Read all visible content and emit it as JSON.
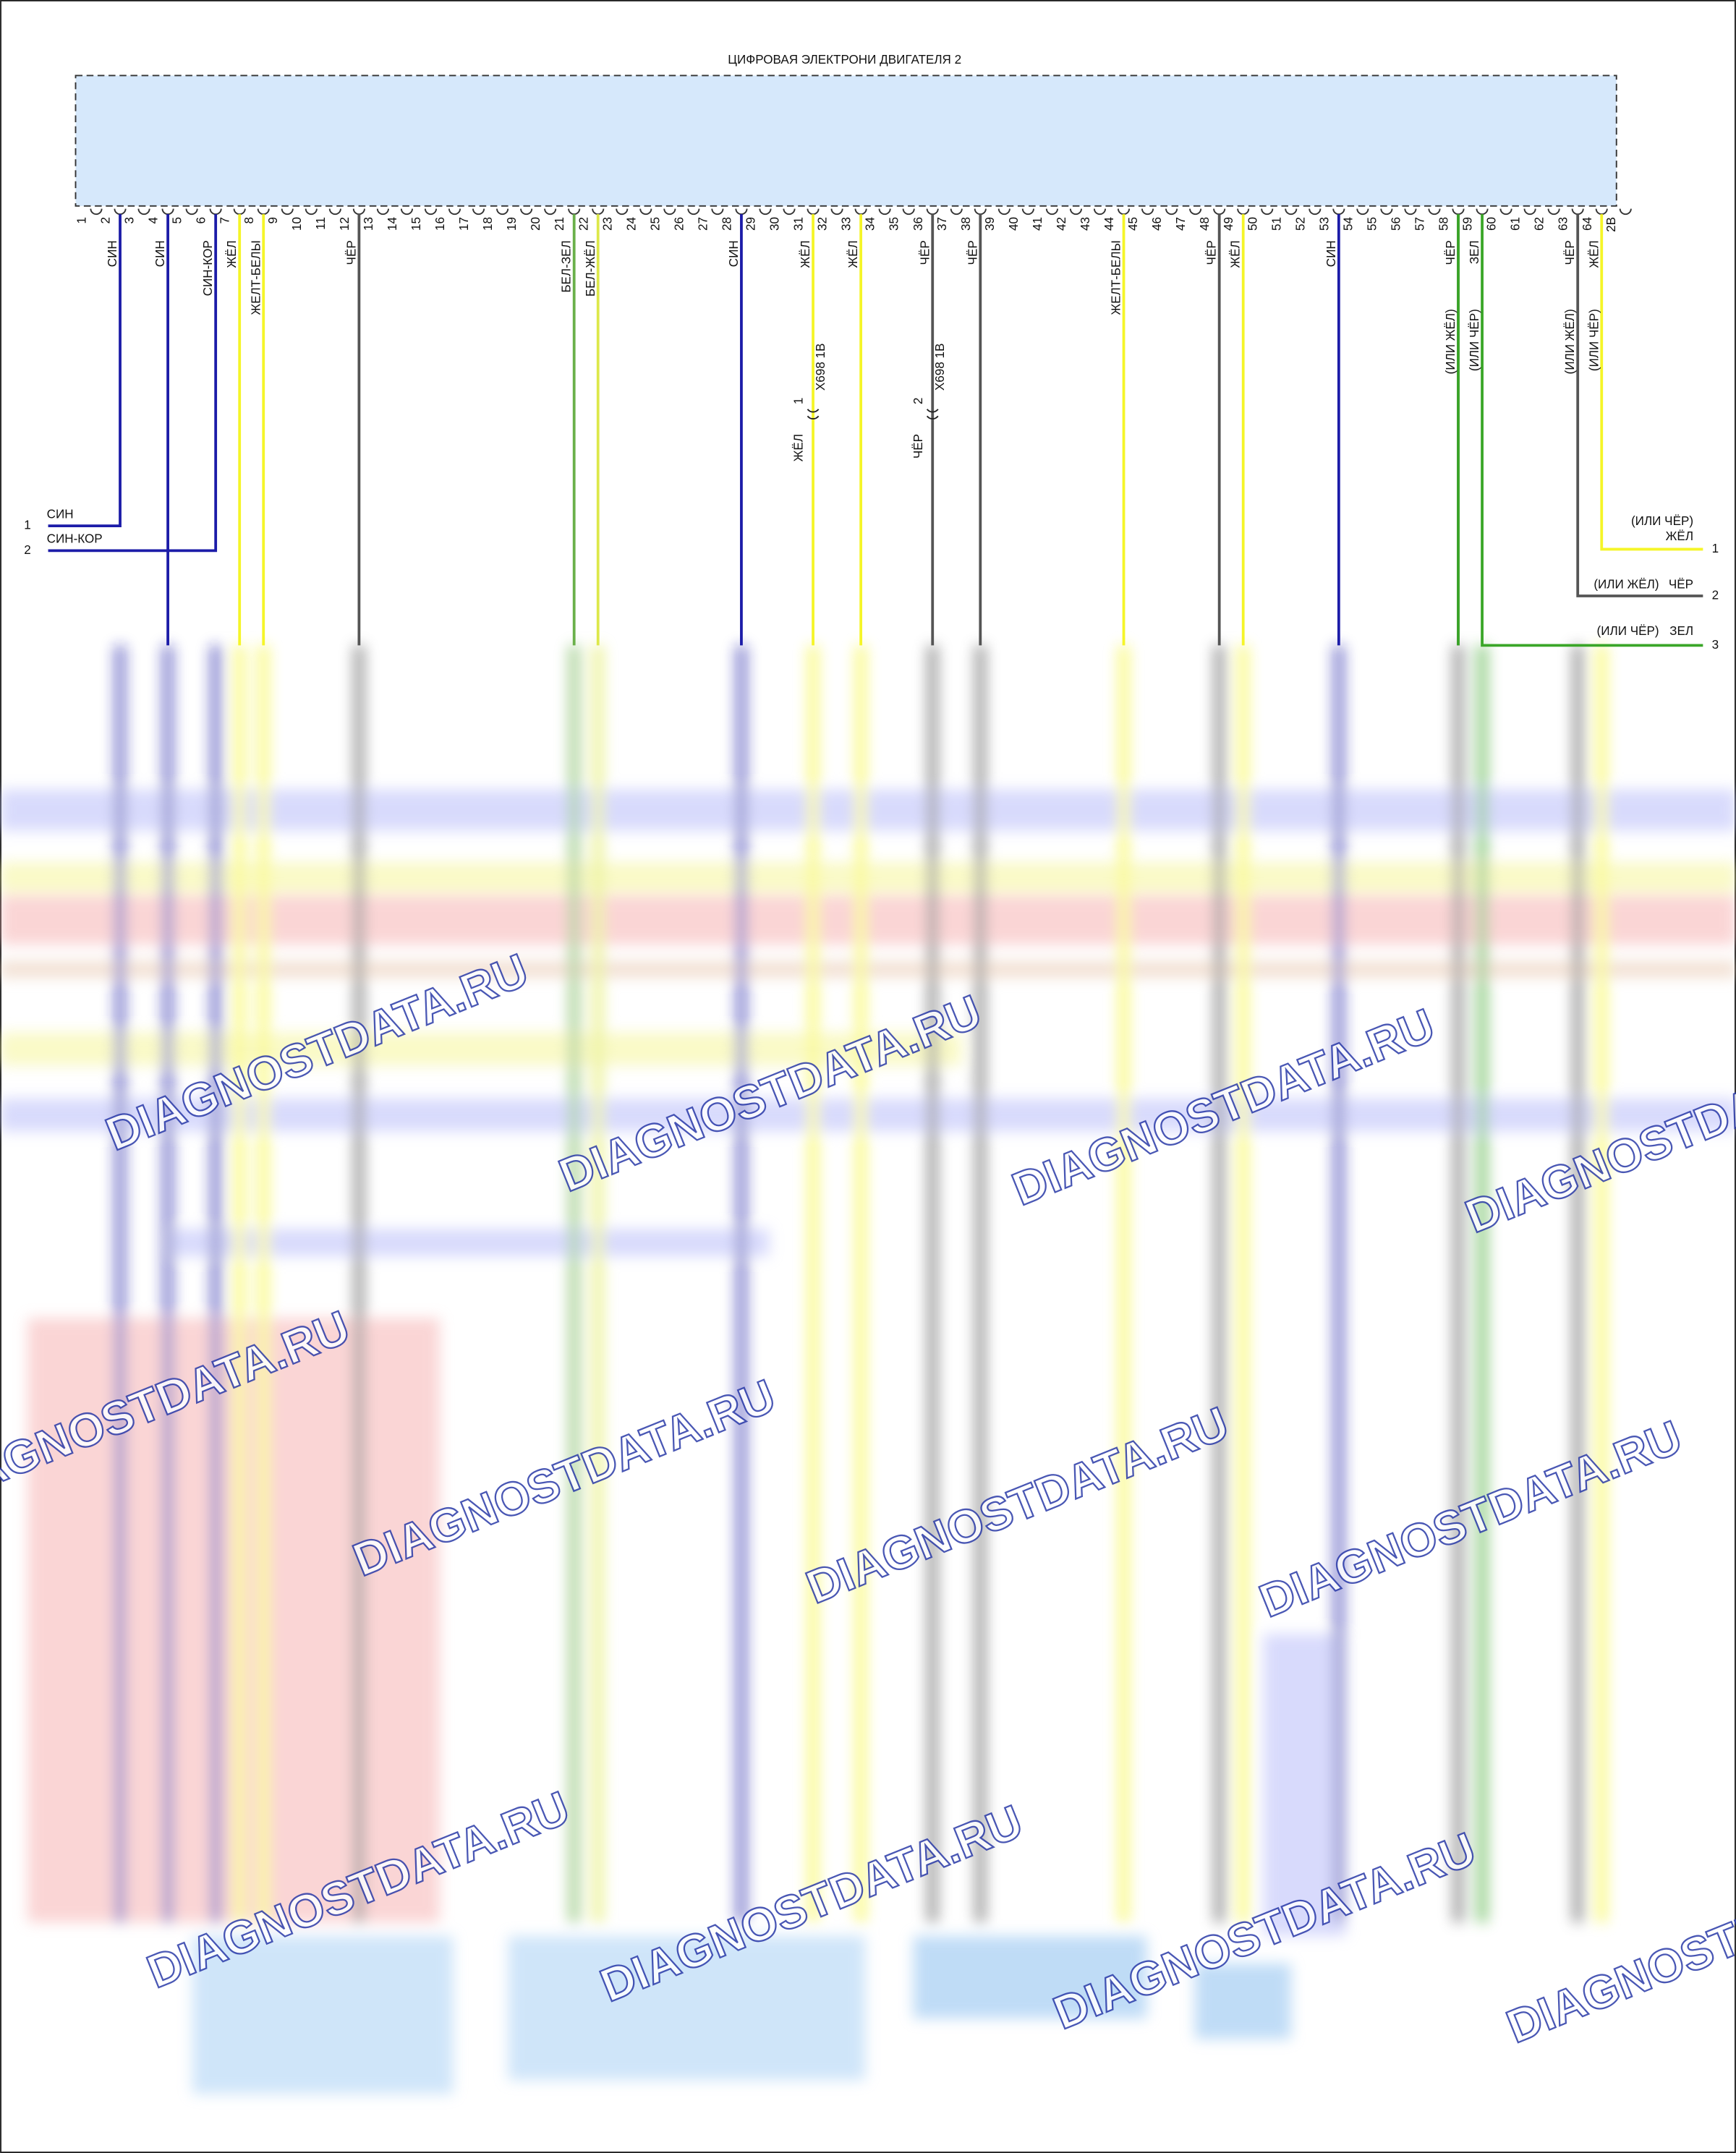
{
  "module": {
    "title": "ЦИФРОВАЯ ЭЛЕКТРОНИ ДВИГАТЕЛЯ 2"
  },
  "pins": [
    {
      "number": "1"
    },
    {
      "number": "2",
      "wire": {
        "label": "СИН",
        "color": "#1c1ca8"
      }
    },
    {
      "number": "3"
    },
    {
      "number": "4",
      "wire": {
        "label": "СИН",
        "color": "#1c1ca8"
      }
    },
    {
      "number": "5"
    },
    {
      "number": "6",
      "wire": {
        "label": "СИН-КОР",
        "color": "#1c1ca8"
      }
    },
    {
      "number": "7",
      "wire": {
        "label": "ЖЁЛ",
        "color": "#f5f528"
      }
    },
    {
      "number": "8",
      "wire": {
        "label": "ЖЕЛТ-БЕЛЫ",
        "color": "#f5f528"
      }
    },
    {
      "number": "9"
    },
    {
      "number": "10"
    },
    {
      "number": "11"
    },
    {
      "number": "12",
      "wire": {
        "label": "ЧЁР",
        "color": "#555555"
      }
    },
    {
      "number": "13"
    },
    {
      "number": "14"
    },
    {
      "number": "15"
    },
    {
      "number": "16"
    },
    {
      "number": "17"
    },
    {
      "number": "18"
    },
    {
      "number": "19"
    },
    {
      "number": "20"
    },
    {
      "number": "21",
      "wire": {
        "label": "БЕЛ-ЗЕЛ",
        "color": "#6ab04a"
      }
    },
    {
      "number": "22",
      "wire": {
        "label": "БЕЛ-ЖЁЛ",
        "color": "#dde84a"
      }
    },
    {
      "number": "23"
    },
    {
      "number": "24"
    },
    {
      "number": "25"
    },
    {
      "number": "26"
    },
    {
      "number": "27"
    },
    {
      "number": "28",
      "wire": {
        "label": "СИН",
        "color": "#1c1ca8"
      }
    },
    {
      "number": "29"
    },
    {
      "number": "30"
    },
    {
      "number": "31",
      "wire": {
        "label": "ЖЁЛ",
        "color": "#f5f528",
        "connector": {
          "pin": "1",
          "name": "X698 1В",
          "lower_label": "ЖЁЛ"
        }
      }
    },
    {
      "number": "32"
    },
    {
      "number": "33",
      "wire": {
        "label": "ЖЁЛ",
        "color": "#f5f528"
      }
    },
    {
      "number": "34"
    },
    {
      "number": "35"
    },
    {
      "number": "36",
      "wire": {
        "label": "ЧЁР",
        "color": "#555555",
        "connector": {
          "pin": "2",
          "name": "X698 1В",
          "lower_label": "ЧЁР"
        }
      }
    },
    {
      "number": "37"
    },
    {
      "number": "38",
      "wire": {
        "label": "ЧЁР",
        "color": "#555555"
      }
    },
    {
      "number": "39"
    },
    {
      "number": "40"
    },
    {
      "number": "41"
    },
    {
      "number": "42"
    },
    {
      "number": "43"
    },
    {
      "number": "44",
      "wire": {
        "label": "ЖЕЛТ-БЕЛЫ",
        "color": "#f5f528"
      }
    },
    {
      "number": "45"
    },
    {
      "number": "46"
    },
    {
      "number": "47"
    },
    {
      "number": "48",
      "wire": {
        "label": "ЧЁР",
        "color": "#555555"
      }
    },
    {
      "number": "49",
      "wire": {
        "label": "ЖЁЛ",
        "color": "#f5f528"
      }
    },
    {
      "number": "50"
    },
    {
      "number": "51"
    },
    {
      "number": "52"
    },
    {
      "number": "53",
      "wire": {
        "label": "СИН",
        "color": "#1c1ca8"
      }
    },
    {
      "number": "54"
    },
    {
      "number": "55"
    },
    {
      "number": "56"
    },
    {
      "number": "57"
    },
    {
      "number": "58",
      "wire": {
        "label": "ЧЁР",
        "alt_label": "(ИЛИ ЖЁЛ)",
        "color": "#555555"
      }
    },
    {
      "number": "59",
      "wire": {
        "label": "ЗЕЛ",
        "alt_label": "(ИЛИ ЧЁР)",
        "color": "#3aa628"
      }
    },
    {
      "number": "60"
    },
    {
      "number": "61"
    },
    {
      "number": "62"
    },
    {
      "number": "63",
      "wire": {
        "label": "ЧЁР",
        "alt_label": "(ИЛИ ЖЁЛ)",
        "color": "#555555"
      }
    },
    {
      "number": "64",
      "wire": {
        "label": "ЖЁЛ",
        "alt_label": "(ИЛИ ЧЁР)",
        "color": "#f5f528"
      }
    },
    {
      "number": "2В"
    }
  ],
  "left_connector": [
    {
      "number": "1",
      "label": "СИН"
    },
    {
      "number": "2",
      "label": "СИН-КОР"
    }
  ],
  "right_connector": [
    {
      "number": "1",
      "label": "ЖЁЛ",
      "alt_label": "(ИЛИ ЧЁР)"
    },
    {
      "number": "2",
      "label": "ЧЁР",
      "alt_label": "(ИЛИ ЖЁЛ)"
    },
    {
      "number": "3",
      "label": "ЗЕЛ",
      "alt_label": "(ИЛИ ЧЁР)"
    }
  ],
  "watermarks": [
    "DIAGNOSTDATA.RU",
    "DIAGNOSTDATA.RU",
    "DIAGNOSTDATA.RU",
    "DIAGNOSTDATA.RU",
    "DIAGNOSTDATA.RU",
    "DIAGNOSTDATA.RU",
    "DIAGNOSTDATA.RU",
    "DIAGNOSTDATA.RU",
    "DIAGNOSTDATA.RU",
    "DIAGNOSTDATA.RU",
    "DIAGNOSTDATA.RU",
    "DIAGNOSTDATA.RU"
  ]
}
